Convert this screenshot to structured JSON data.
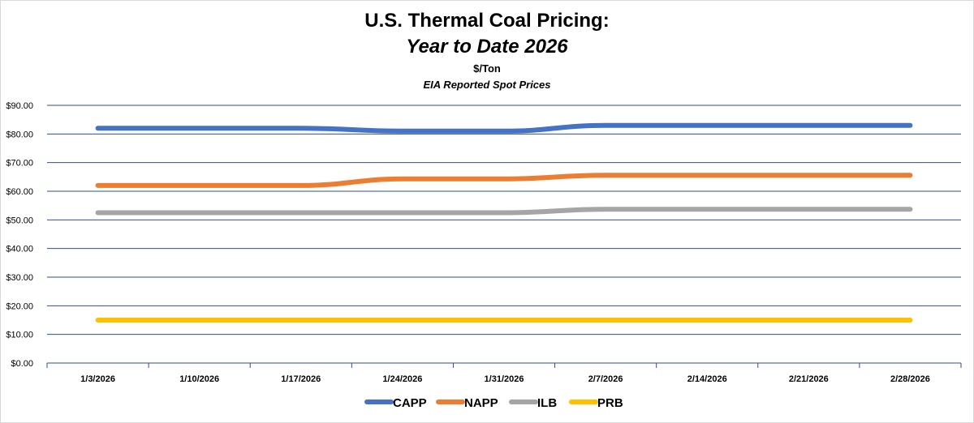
{
  "chart_data": {
    "type": "line",
    "title": "U.S. Thermal Coal Pricing:",
    "subtitle": "Year to Date 2026",
    "unit_label": "$/Ton",
    "source_label": "EIA Reported Spot Prices",
    "categories": [
      "1/3/2026",
      "1/10/2026",
      "1/17/2026",
      "1/24/2026",
      "1/31/2026",
      "2/7/2026",
      "2/14/2026",
      "2/21/2026",
      "2/28/2026"
    ],
    "y_ticks": [
      "$0.00",
      "$10.00",
      "$20.00",
      "$30.00",
      "$40.00",
      "$50.00",
      "$60.00",
      "$70.00",
      "$80.00",
      "$90.00"
    ],
    "ylim": [
      0,
      90
    ],
    "grid": true,
    "legend_position": "bottom",
    "series": [
      {
        "name": "CAPP",
        "color": "#4472c4",
        "values": [
          82.0,
          82.0,
          82.0,
          81.0,
          81.0,
          83.0,
          83.0,
          83.0,
          83.0
        ]
      },
      {
        "name": "NAPP",
        "color": "#ed7d31",
        "values": [
          62.0,
          62.0,
          62.0,
          64.3,
          64.3,
          65.6,
          65.6,
          65.6,
          65.6
        ]
      },
      {
        "name": "ILB",
        "color": "#a5a5a5",
        "values": [
          52.5,
          52.5,
          52.5,
          52.5,
          52.5,
          53.7,
          53.7,
          53.7,
          53.7
        ]
      },
      {
        "name": "PRB",
        "color": "#ffc000",
        "values": [
          15.0,
          15.0,
          15.0,
          15.0,
          15.0,
          15.0,
          15.0,
          15.0,
          15.0
        ]
      }
    ]
  }
}
